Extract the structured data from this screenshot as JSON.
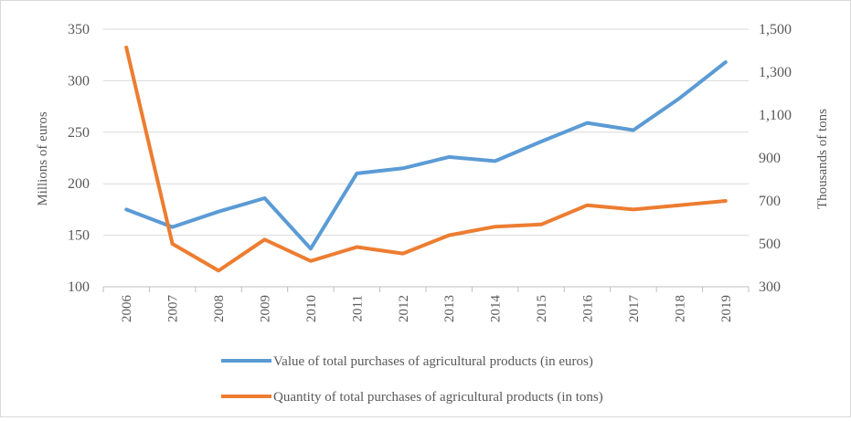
{
  "chart_data": {
    "type": "line",
    "title": "",
    "categories": [
      "2006",
      "2007",
      "2008",
      "2009",
      "2010",
      "2011",
      "2012",
      "2013",
      "2014",
      "2015",
      "2016",
      "2017",
      "2018",
      "2019"
    ],
    "y_left": {
      "label": "Millions of euros",
      "range": [
        100,
        350
      ],
      "ticks": [
        "100",
        "150",
        "200",
        "250",
        "300",
        "350"
      ]
    },
    "y_right": {
      "label": "Thousands of tons",
      "range": [
        300,
        1500
      ],
      "ticks": [
        "300",
        "500",
        "700",
        "900",
        "1,100",
        "1,300",
        "1,500"
      ]
    },
    "series": [
      {
        "name": "Value of total purchases of agricultural products (in euros)",
        "axis": "left",
        "color": "#5b9bd5",
        "values": [
          175,
          158,
          173,
          186,
          137,
          210,
          215,
          226,
          222,
          241,
          259,
          252,
          283,
          318
        ]
      },
      {
        "name": "Quantity of total purchases of agricultural products (in tons)",
        "axis": "right",
        "color": "#ed7d31",
        "values": [
          1415,
          500,
          375,
          520,
          420,
          485,
          455,
          540,
          580,
          590,
          680,
          660,
          680,
          700
        ]
      }
    ],
    "grid": true,
    "legend": "bottom"
  }
}
